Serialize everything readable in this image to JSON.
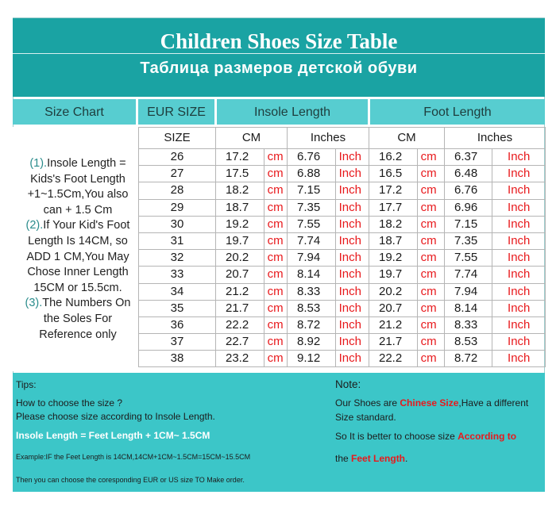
{
  "title_en": "Children Shoes Size Table",
  "title_ru": "Таблица размеров детской обуви",
  "headers": {
    "size_chart": "Size Chart",
    "eur_size": "EUR SIZE",
    "insole_length": "Insole Length",
    "foot_length": "Foot Length"
  },
  "subheaders": {
    "size": "SIZE",
    "insole_cm": "CM",
    "insole_inches": "Inches",
    "foot_cm": "CM",
    "foot_inches": "Inches"
  },
  "units": {
    "cm": "cm",
    "inch": "Inch"
  },
  "sidebar": {
    "n1": "(1).",
    "t1": "Insole Length = Kids's Foot Length +1~1.5Cm,You also can + 1.5 Cm",
    "n2": "(2).",
    "t2": "If Your Kid's Foot Length Is 14CM,  so ADD 1 CM,You May Chose Inner Length 15CM or 15.5cm.",
    "n3": "(3).",
    "t3": "The Numbers On the Soles For Reference only"
  },
  "rows": [
    {
      "size": "26",
      "insole_cm": "17.2",
      "insole_in": "6.76",
      "foot_cm": "16.2",
      "foot_in": "6.37"
    },
    {
      "size": "27",
      "insole_cm": "17.5",
      "insole_in": "6.88",
      "foot_cm": "16.5",
      "foot_in": "6.48"
    },
    {
      "size": "28",
      "insole_cm": "18.2",
      "insole_in": "7.15",
      "foot_cm": "17.2",
      "foot_in": "6.76"
    },
    {
      "size": "29",
      "insole_cm": "18.7",
      "insole_in": "7.35",
      "foot_cm": "17.7",
      "foot_in": "6.96"
    },
    {
      "size": "30",
      "insole_cm": "19.2",
      "insole_in": "7.55",
      "foot_cm": "18.2",
      "foot_in": "7.15"
    },
    {
      "size": "31",
      "insole_cm": "19.7",
      "insole_in": "7.74",
      "foot_cm": "18.7",
      "foot_in": "7.35"
    },
    {
      "size": "32",
      "insole_cm": "20.2",
      "insole_in": "7.94",
      "foot_cm": "19.2",
      "foot_in": "7.55"
    },
    {
      "size": "33",
      "insole_cm": "20.7",
      "insole_in": "8.14",
      "foot_cm": "19.7",
      "foot_in": "7.74"
    },
    {
      "size": "34",
      "insole_cm": "21.2",
      "insole_in": "8.33",
      "foot_cm": "20.2",
      "foot_in": "7.94"
    },
    {
      "size": "35",
      "insole_cm": "21.7",
      "insole_in": "8.53",
      "foot_cm": "20.7",
      "foot_in": "8.14"
    },
    {
      "size": "36",
      "insole_cm": "22.2",
      "insole_in": "8.72",
      "foot_cm": "21.2",
      "foot_in": "8.33"
    },
    {
      "size": "37",
      "insole_cm": "22.7",
      "insole_in": "8.92",
      "foot_cm": "21.7",
      "foot_in": "8.53"
    },
    {
      "size": "38",
      "insole_cm": "23.2",
      "insole_in": "9.12",
      "foot_cm": "22.2",
      "foot_in": "8.72"
    }
  ],
  "tips": {
    "label": "Tips:",
    "how": "How to choose the size ?",
    "choose": "Please choose size according to Insole Length.",
    "formula": "Insole Length = Feet Length + 1CM~ 1.5CM",
    "example": "Example:IF the Feet Length is 14CM,14CM+1CM~1.5CM=15CM~15.5CM",
    "then": "Then you can choose the coresponding EUR or US size TO Make order."
  },
  "note": {
    "label": "Note:",
    "l1_a": "Our Shoes are ",
    "l1_red": "Chinese Size",
    "l1_b": ",Have a different",
    "l2": "Size standard.",
    "l3_a": "So It is better to choose size ",
    "l3_red": "According to",
    "l4_a": "the ",
    "l4_red": "Feet Length",
    "l4_b": "."
  },
  "colors": {
    "title_bg": "#1aa3a3",
    "header_bg": "#57cdd0",
    "panel_bg": "#3cc6c8",
    "unit_red": "#e8191c"
  }
}
